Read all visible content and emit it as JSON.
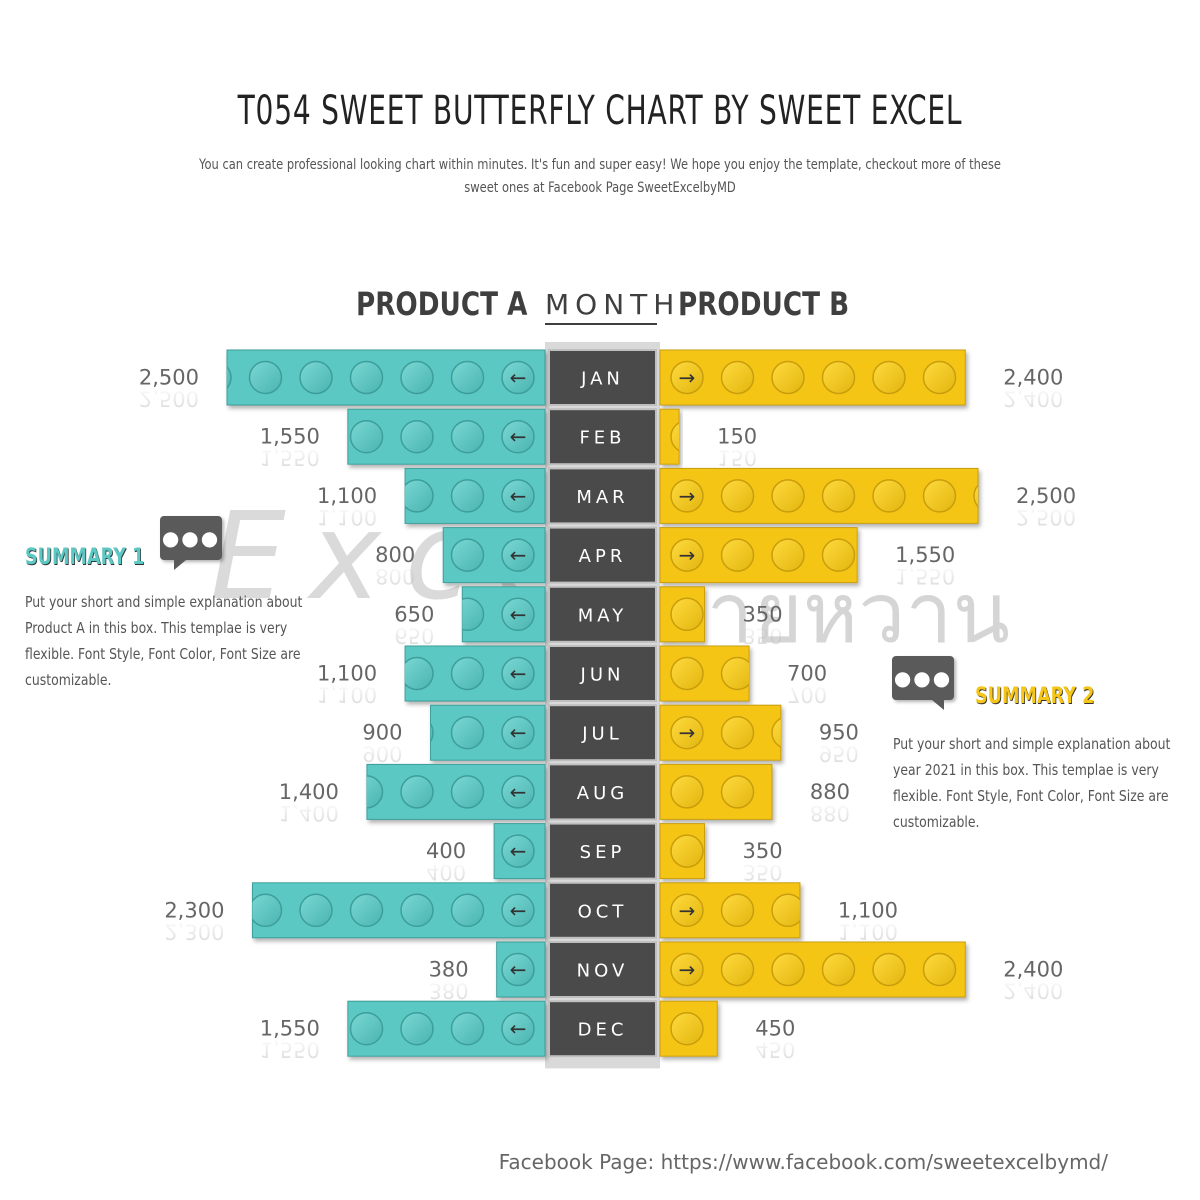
{
  "title": "T054 SWEET BUTTERFLY CHART BY SWEET EXCEL",
  "subtitle": "You can create professional looking chart within minutes. It's fun and super easy! We hope you enjoy the template, checkout more of these sweet ones at Facebook Page SweetExcelbyMD",
  "watermark": "Excel",
  "watermark2": "ลายหวาน",
  "colors": {
    "product_a": "#5bc8c4",
    "product_b": "#f5c518",
    "month_bg": "#4a4a4a",
    "month_strip": "#d9d9d9"
  },
  "summary1": {
    "title": "SUMMARY 1",
    "text": "Put your short and simple explanation about Product A in this box. This templae is very flexible. Font Style, Font Color, Font Size are customizable.",
    "icon": "chat-bubble-icon"
  },
  "summary2": {
    "title": "SUMMARY 2",
    "text": "Put your short and simple explanation about year 2021 in this box. This templae is very flexible. Font Style, Font Color, Font Size are customizable.",
    "icon": "chat-bubble-icon"
  },
  "footer": "Facebook Page: https://www.facebook.com/sweetexcelbymd/",
  "chart_data": {
    "type": "bar",
    "orientation": "butterfly",
    "categories": [
      "JAN",
      "FEB",
      "MAR",
      "APR",
      "MAY",
      "JUN",
      "JUL",
      "AUG",
      "SEP",
      "OCT",
      "NOV",
      "DEC"
    ],
    "category_label": "MONTH",
    "series": [
      {
        "name": "PRODUCT A",
        "values": [
          2500,
          1550,
          1100,
          800,
          650,
          1100,
          900,
          1400,
          400,
          2300,
          380,
          1550
        ],
        "labels": [
          "2,500",
          "1,550",
          "1,100",
          "800",
          "650",
          "1,100",
          "900",
          "1,400",
          "400",
          "2,300",
          "380",
          "1,550"
        ]
      },
      {
        "name": "PRODUCT B",
        "values": [
          2400,
          150,
          2500,
          1550,
          350,
          700,
          950,
          880,
          350,
          1100,
          2400,
          450
        ],
        "labels": [
          "2,400",
          "150",
          "2,500",
          "1,550",
          "350",
          "700",
          "950",
          "880",
          "350",
          "1,100",
          "2,400",
          "450"
        ]
      }
    ],
    "xlim": [
      0,
      2500
    ]
  }
}
